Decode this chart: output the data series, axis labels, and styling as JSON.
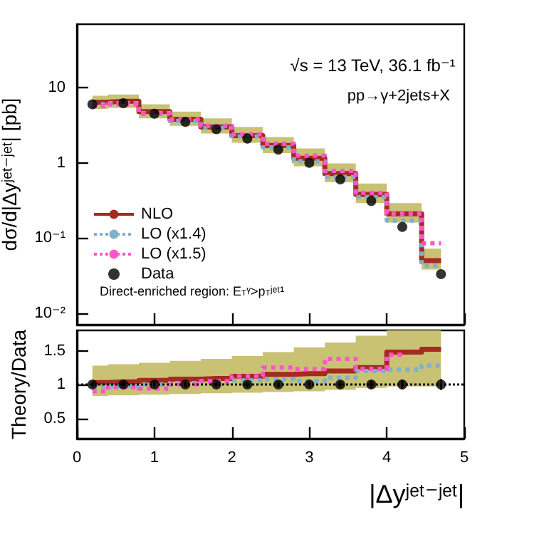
{
  "chart_data": [
    {
      "type": "step",
      "ylabel": "dσ/d|Δyʲᵉᵗ⁻ʲᵉᵗ| [pb]",
      "log": true,
      "legend": "bottom left",
      "tick_labels": "y",
      "annotations": [
        "√s = 13 TeV, 36.1 fb⁻¹",
        "pp→γ+2jets+X",
        "Direct-enriched region: E$_{T}$ᵞ>p$_{T}$ʲᵉᵗ¹"
      ],
      "xlim": [
        0,
        5
      ],
      "xticks": [
        0,
        1,
        2,
        3,
        4,
        5
      ],
      "ylim": [
        0.007,
        70
      ],
      "yticks": [
        {
          "value": 0.01,
          "label": "10⁻²"
        },
        {
          "value": 0.1,
          "label": "10⁻¹"
        },
        1,
        10
      ],
      "series": [
        {
          "name": "NLO",
          "color": "#a52a22",
          "line_style": "solid",
          "x": [
            0.2,
            0.6,
            1.0,
            1.4,
            1.8,
            2.2,
            2.6,
            3.0,
            3.4,
            3.8,
            4.2,
            4.7
          ],
          "values": [
            6.4,
            6.6,
            4.8,
            3.8,
            3.0,
            2.3,
            1.7,
            1.15,
            0.72,
            0.38,
            0.21,
            0.05
          ],
          "lower": [
            5.2,
            5.4,
            3.9,
            3.1,
            2.45,
            1.85,
            1.35,
            0.9,
            0.55,
            0.29,
            0.16,
            0.038
          ],
          "upper": [
            7.8,
            8.1,
            6.0,
            4.8,
            3.9,
            3.0,
            2.2,
            1.55,
            0.98,
            0.53,
            0.29,
            0.072
          ]
        },
        {
          "name": "LO (x1.4)",
          "color": "#7fb0cc",
          "line_style": "dotted",
          "x": [
            0.2,
            0.6,
            1.0,
            1.4,
            1.8,
            2.2,
            2.6,
            3.0,
            3.4,
            3.8,
            4.2,
            4.7
          ],
          "values": [
            6.0,
            6.2,
            4.6,
            3.6,
            2.9,
            2.25,
            1.6,
            1.05,
            0.65,
            0.35,
            0.17,
            0.043
          ]
        },
        {
          "name": "LO (x1.5)",
          "color": "#ff55cc",
          "line_style": "dotted",
          "x": [
            0.2,
            0.6,
            1.0,
            1.4,
            1.8,
            2.2,
            2.6,
            3.0,
            3.4,
            3.8,
            4.2,
            4.7
          ],
          "values": [
            5.7,
            6.0,
            4.5,
            3.8,
            3.1,
            2.4,
            1.8,
            1.25,
            0.78,
            0.4,
            0.21,
            0.085
          ]
        },
        {
          "name": "Data",
          "type": "scatter",
          "marker": "circle",
          "color": "#000000",
          "x": [
            0.2,
            0.6,
            1.0,
            1.4,
            1.8,
            2.2,
            2.6,
            3.0,
            3.4,
            3.8,
            4.2,
            4.7
          ],
          "values": [
            6.0,
            6.2,
            4.5,
            3.5,
            2.8,
            2.1,
            1.5,
            1.0,
            0.6,
            0.31,
            0.14,
            0.033
          ]
        }
      ]
    },
    {
      "type": "step",
      "xlabel": "|Δyʲᵉᵗ⁻ʲᵉᵗ|",
      "ylabel": "Theory/Data",
      "xlim": [
        0,
        5
      ],
      "xticks": [
        0,
        1,
        2,
        3,
        4,
        5
      ],
      "ylim": [
        0.2,
        1.8
      ],
      "yticks": [
        0.5,
        1,
        1.5
      ],
      "ref_lines": [
        {
          "axis": "y",
          "value": 1,
          "color": "#000000",
          "line_style": "dotted"
        }
      ],
      "series": [
        {
          "color": "#a52a22",
          "line_style": "solid",
          "x": [
            0.2,
            0.6,
            1.0,
            1.4,
            1.8,
            2.2,
            2.6,
            3.0,
            3.4,
            3.8,
            4.2,
            4.7
          ],
          "values": [
            1.03,
            1.04,
            1.06,
            1.08,
            1.09,
            1.12,
            1.15,
            1.16,
            1.2,
            1.25,
            1.48,
            1.52
          ],
          "lower": [
            0.83,
            0.84,
            0.85,
            0.86,
            0.87,
            0.88,
            0.89,
            0.9,
            0.92,
            0.95,
            0.97,
            0.97
          ],
          "upper": [
            1.28,
            1.3,
            1.32,
            1.35,
            1.38,
            1.42,
            1.48,
            1.55,
            1.62,
            1.72,
            1.8,
            1.8
          ]
        },
        {
          "color": "#7fb0cc",
          "line_style": "dotted",
          "x": [
            0.2,
            0.6,
            1.0,
            1.4,
            1.8,
            2.2,
            2.6,
            3.0,
            3.4,
            3.8,
            4.2,
            4.7
          ],
          "values": [
            0.97,
            0.98,
            1.0,
            1.02,
            1.04,
            1.06,
            1.08,
            1.05,
            1.1,
            1.2,
            1.22,
            1.28
          ]
        },
        {
          "color": "#ff55cc",
          "line_style": "dotted",
          "x": [
            0.2,
            0.6,
            1.0,
            1.4,
            1.8,
            2.2,
            2.6,
            3.0,
            3.4,
            3.8,
            4.2
          ],
          "values": [
            0.9,
            0.96,
            0.94,
            1.0,
            1.05,
            1.12,
            1.25,
            1.23,
            1.38,
            1.23,
            1.44
          ]
        },
        {
          "type": "scatter",
          "marker": "circle",
          "color": "#000000",
          "x": [
            0.2,
            0.6,
            1.0,
            1.4,
            1.8,
            2.2,
            2.6,
            3.0,
            3.4,
            3.8,
            4.2,
            4.7
          ],
          "values": [
            1,
            1,
            1,
            1,
            1,
            1,
            1,
            1,
            1,
            1,
            1,
            1
          ],
          "errors": [
            0.04,
            0.04,
            0.04,
            0.04,
            0.04,
            0.04,
            0.04,
            0.04,
            0.05,
            0.06,
            0.07,
            0.08
          ]
        }
      ]
    }
  ]
}
